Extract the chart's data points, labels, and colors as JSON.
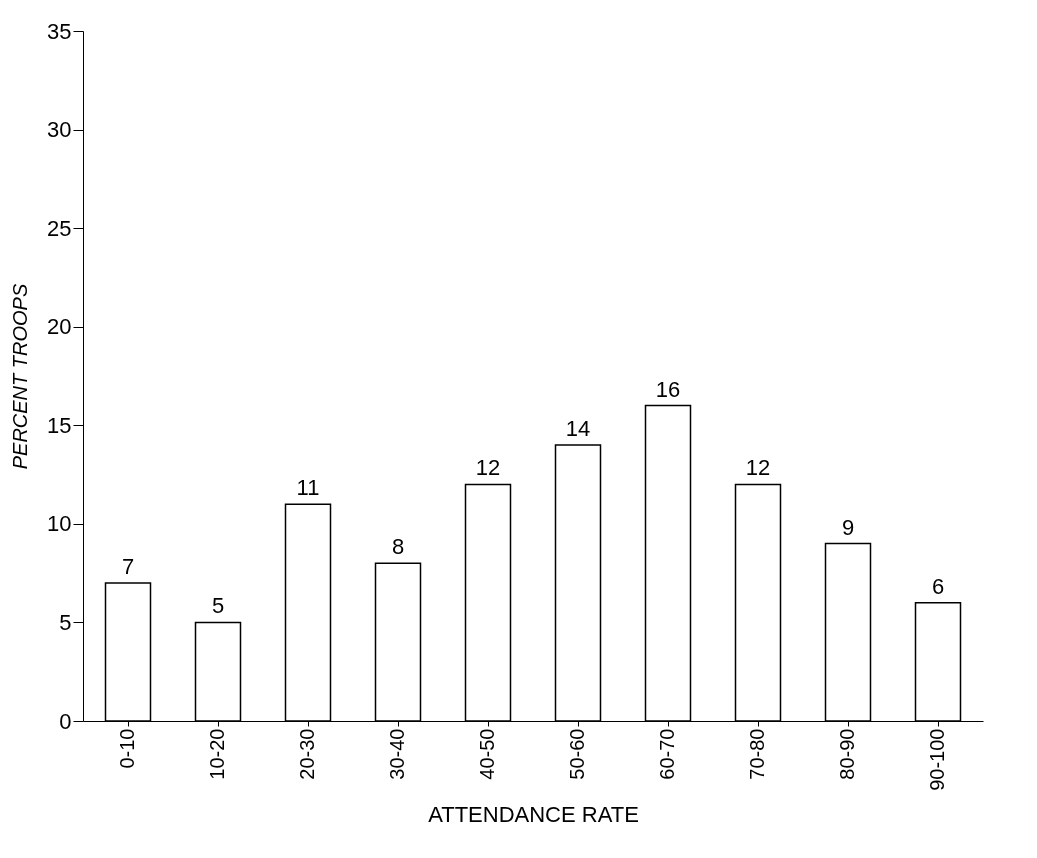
{
  "chart_data": {
    "type": "bar",
    "xlabel": "ATTENDANCE RATE",
    "ylabel": "PERCENT TROOPS",
    "categories": [
      "0-10",
      "10-20",
      "20-30",
      "30-40",
      "40-50",
      "50-60",
      "60-70",
      "70-80",
      "80-90",
      "90-100"
    ],
    "values": [
      7,
      5,
      11,
      8,
      12,
      14,
      16,
      12,
      9,
      6
    ],
    "color": "#ffffff",
    "ylim": [
      0,
      35
    ],
    "yticks": [
      0,
      5,
      10,
      15,
      20,
      25,
      30,
      35
    ],
    "grid": false,
    "data_labels": true
  }
}
